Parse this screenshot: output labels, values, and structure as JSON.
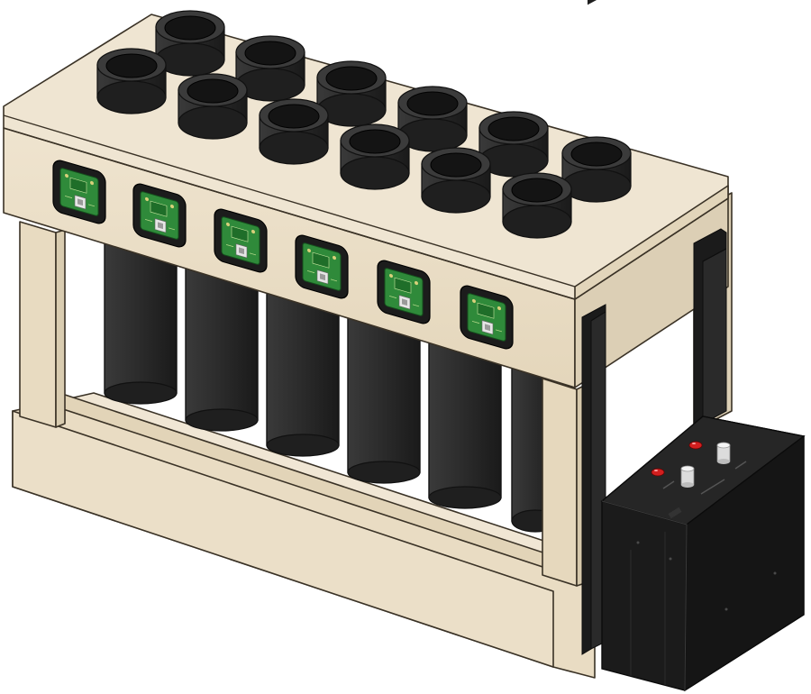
{
  "colors": {
    "wood_top": "#efe5d2",
    "wood_front": "#e9dcc3",
    "wood_side": "#dccfb5",
    "wood_dark": "#cfc1a4",
    "tube": "#2e2e2e",
    "tube_dark": "#1f1f1f",
    "tube_top": "#3b3b3b",
    "tube_hole": "#141414",
    "pcb_case": "#1c1c1c",
    "pcb_board": "#2f8a3a",
    "control_box": "#1b1b1b",
    "control_box_top": "#262626",
    "button_red": "#d21f1f",
    "knob": "#e8e8e8"
  },
  "components": {
    "top_tube_openings": 12,
    "front_pcb_modules": 6,
    "lower_tubes_visible": 6,
    "control_box_red_buttons": 2,
    "control_box_knobs": 2
  }
}
